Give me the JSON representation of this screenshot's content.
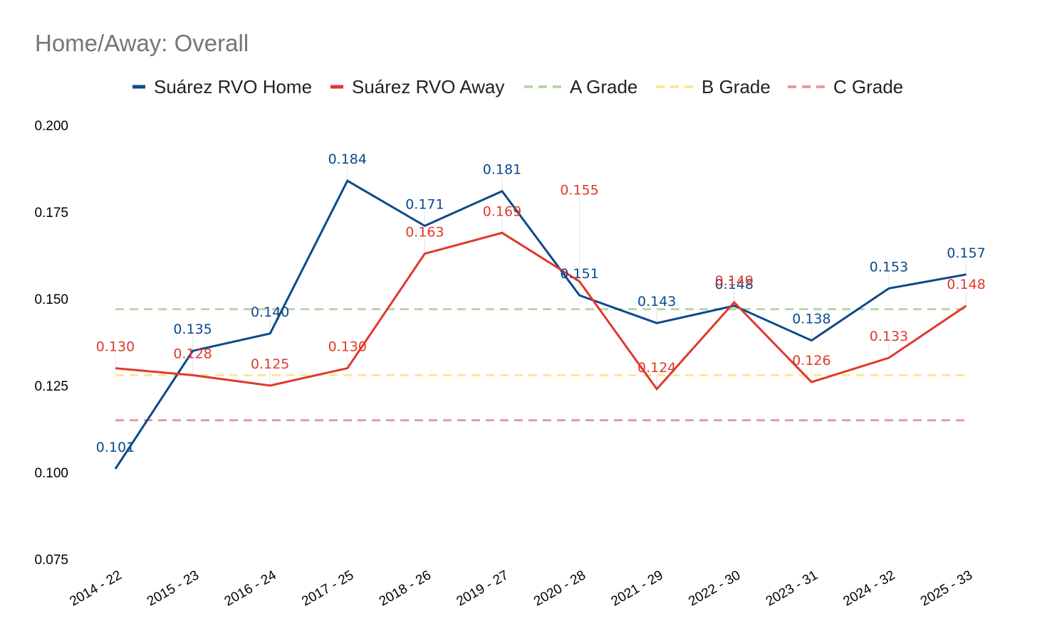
{
  "chart_data": {
    "type": "line",
    "title": "Home/Away: Overall",
    "xlabel": "",
    "ylabel": "",
    "ylim": [
      0.075,
      0.2
    ],
    "yticks": [
      "0.200",
      "0.175",
      "0.150",
      "0.125",
      "0.100",
      "0.075"
    ],
    "ytick_values": [
      0.2,
      0.175,
      0.15,
      0.125,
      0.1,
      0.075
    ],
    "legend_position": "top",
    "grid": false,
    "categories": [
      "2014 - 22",
      "2015 - 23",
      "2016 - 24",
      "2017 - 25",
      "2018 - 26",
      "2019 - 27",
      "2020 - 28",
      "2021 - 29",
      "2022 - 30",
      "2023 - 31",
      "2024 - 32",
      "2025 - 33"
    ],
    "series": [
      {
        "name": "Suárez RVO Home",
        "color": "#0b4a8b",
        "style": "solid",
        "values": [
          0.101,
          0.135,
          0.14,
          0.184,
          0.171,
          0.181,
          0.151,
          0.143,
          0.148,
          0.138,
          0.153,
          0.157
        ],
        "labels": [
          "0.101",
          "0.135",
          "0.140",
          "0.184",
          "0.171",
          "0.181",
          "0.151",
          "0.143",
          "0.148",
          "0.138",
          "0.153",
          "0.157"
        ]
      },
      {
        "name": "Suárez RVO Away",
        "color": "#e0392b",
        "style": "solid",
        "values": [
          0.13,
          0.128,
          0.125,
          0.13,
          0.163,
          0.169,
          0.155,
          0.124,
          0.149,
          0.126,
          0.133,
          0.148
        ],
        "labels": [
          "0.130",
          "0.128",
          "0.125",
          "0.130",
          "0.163",
          "0.169",
          "0.155",
          "0.124",
          "0.149",
          "0.126",
          "0.133",
          "0.148"
        ]
      }
    ],
    "reference_lines": [
      {
        "name": "A Grade",
        "value": 0.147,
        "color": "#b6d7a8",
        "style": "dashed"
      },
      {
        "name": "B Grade",
        "value": 0.128,
        "color": "#ffe599",
        "style": "dashed"
      },
      {
        "name": "C Grade",
        "value": 0.115,
        "color": "#ea9999",
        "style": "dashed"
      }
    ]
  }
}
